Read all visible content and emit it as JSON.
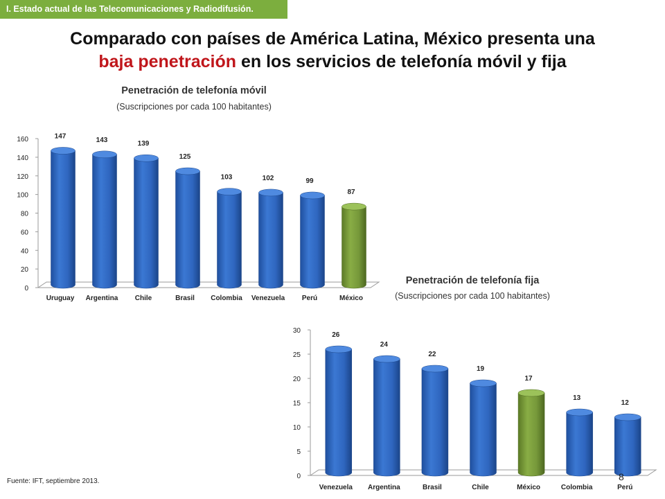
{
  "section_tag": "I. Estado actual de las Telecomunicaciones y Radiodifusión.",
  "headline": {
    "line1": "Comparado con países de América Latina, México presenta una",
    "line2_accent": "baja penetración",
    "line2_rest": " en los servicios de telefonía móvil y fija"
  },
  "colors": {
    "bar_blue": "#2f66bf",
    "bar_highlight_green": "#76983a",
    "section_tag": "#7cae3e",
    "accent_red": "#c0161b"
  },
  "chart_data": [
    {
      "type": "bar",
      "title": "Penetración de telefonía móvil",
      "subtitle": "(Suscripciones por cada 100 habitantes)",
      "categories": [
        "Uruguay",
        "Argentina",
        "Chile",
        "Brasil",
        "Colombia",
        "Venezuela",
        "Perú",
        "México"
      ],
      "values": [
        147,
        143,
        139,
        125,
        103,
        102,
        99,
        87
      ],
      "value_labels": [
        "147",
        "143",
        "139",
        "125",
        "103",
        "102",
        "99",
        "87"
      ],
      "highlight": "México",
      "ylim": [
        0,
        160
      ],
      "yticks": [
        0,
        20,
        40,
        60,
        80,
        100,
        120,
        140,
        160
      ],
      "ytick_labels": [
        "0",
        "20",
        "40",
        "60",
        "80",
        "100",
        "120",
        "140",
        "160"
      ],
      "xlabel": "",
      "ylabel": "",
      "grid": false,
      "legend": "none"
    },
    {
      "type": "bar",
      "title": "Penetración de telefonía fija",
      "subtitle": "(Suscripciones por cada 100 habitantes)",
      "categories": [
        "Venezuela",
        "Argentina",
        "Brasil",
        "Chile",
        "México",
        "Colombia",
        "Perú"
      ],
      "values": [
        26,
        24,
        22,
        19,
        17,
        13,
        12
      ],
      "value_labels": [
        "26",
        "24",
        "22",
        "19",
        "17",
        "13",
        "12"
      ],
      "highlight": "México",
      "ylim": [
        0,
        30
      ],
      "yticks": [
        0,
        5,
        10,
        15,
        20,
        25,
        30
      ],
      "ytick_labels": [
        "0",
        "5",
        "10",
        "15",
        "20",
        "25",
        "30"
      ],
      "xlabel": "",
      "ylabel": "",
      "grid": false,
      "legend": "none"
    }
  ],
  "footnote": "Fuente: IFT, septiembre 2013.",
  "page_number": "8"
}
